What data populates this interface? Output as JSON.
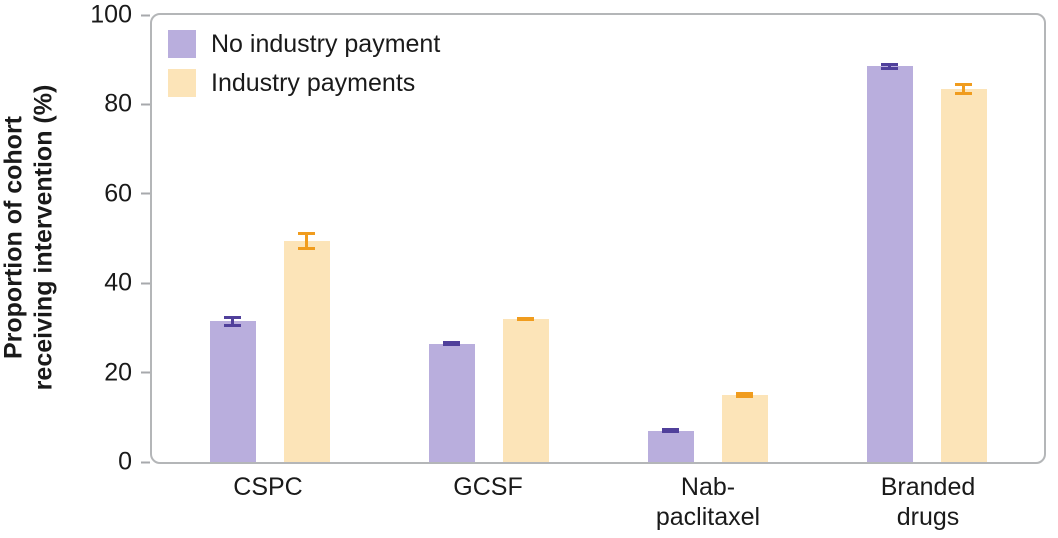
{
  "chart_data": {
    "type": "bar",
    "title": "",
    "xlabel": "",
    "ylabel": "Proportion of cohort\nreceiving intervention (%)",
    "ylim": [
      0,
      100
    ],
    "yticks": [
      0,
      20,
      40,
      60,
      80,
      100
    ],
    "grid": false,
    "legend_position": "top-left-inside",
    "categories": [
      "CSPC",
      "GCSF",
      "Nab-\npaclitaxel",
      "Branded\ndrugs"
    ],
    "series": [
      {
        "name": "No industry payment",
        "color": "#b9aedd",
        "error_color": "#50409b",
        "values": [
          31.5,
          26.5,
          7,
          88.5
        ],
        "errors": [
          1.2,
          0.6,
          0.5,
          0.8
        ]
      },
      {
        "name": "Industry payments",
        "color": "#fce4b8",
        "error_color": "#f09c1e",
        "values": [
          49.5,
          32,
          15,
          83.5
        ],
        "errors": [
          2.0,
          0.5,
          0.7,
          1.3
        ]
      }
    ],
    "colors": {
      "axis_border": "#b4b6b8",
      "tick_mark": "#a7a9ac",
      "text": "#1a1a1a"
    }
  }
}
